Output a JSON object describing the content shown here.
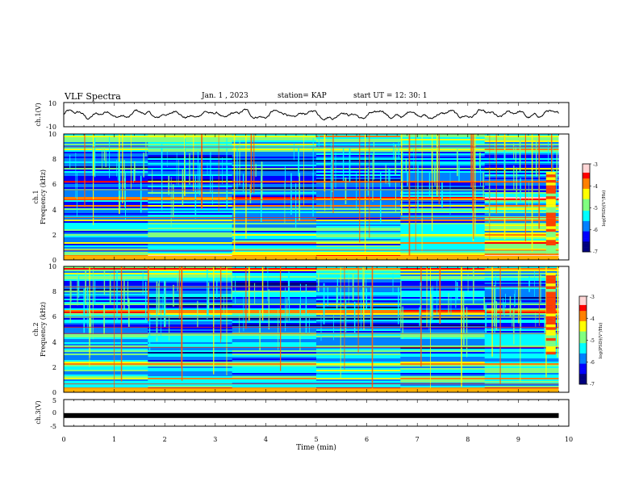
{
  "header": {
    "title": "VLF Spectra",
    "date": "Jan. 1 , 2023",
    "station": "station= KAP",
    "start": "start UT = 12: 30: 1"
  },
  "colors": {
    "colormap": [
      "#00007f",
      "#0000ff",
      "#0080ff",
      "#00ffff",
      "#80ff80",
      "#ffff00",
      "#ff8000",
      "#ff0000",
      "#ffc8c8",
      "#ffffff"
    ],
    "trace": "#000000"
  },
  "chart_data": [
    {
      "type": "line",
      "panel": "ch1-waveform",
      "ylabel": "ch.1(V)",
      "ylim": [
        -10,
        10
      ],
      "yticks": [
        "10",
        "-10"
      ],
      "xlim": [
        0,
        10
      ],
      "note_series": "waveform oscillating roughly between -4 and 4 V"
    },
    {
      "type": "heatmap",
      "panel": "ch1-spectrogram",
      "ylabel": "ch.1",
      "ylabel2": "Frequency (kHz)",
      "ylim": [
        0,
        10
      ],
      "yticks": [
        "0",
        "2",
        "4",
        "6",
        "8",
        "10"
      ],
      "xlim": [
        0,
        10
      ],
      "colorbar": {
        "label": "log(PSD)(V²/Hz)",
        "range": [
          -7,
          -3
        ],
        "ticks": [
          "-3",
          "-4",
          "-5",
          "-6",
          "-7"
        ]
      }
    },
    {
      "type": "heatmap",
      "panel": "ch2-spectrogram",
      "ylabel": "ch.2",
      "ylabel2": "Frequency (kHz)",
      "ylim": [
        0,
        10
      ],
      "yticks": [
        "0",
        "2",
        "4",
        "6",
        "8",
        "10"
      ],
      "xlim": [
        0,
        10
      ],
      "colorbar": {
        "label": "log(PSD)(V²/Hz)",
        "range": [
          -7,
          -3
        ],
        "ticks": [
          "-3",
          "-4",
          "-5",
          "-6",
          "-7"
        ]
      }
    },
    {
      "type": "line",
      "panel": "ch3-waveform",
      "ylabel": "ch.3(V)",
      "ylim": [
        -5,
        5
      ],
      "yticks": [
        "5",
        "0",
        "-5"
      ],
      "xlim": [
        0,
        10
      ],
      "xticks": [
        "0",
        "1",
        "2",
        "3",
        "4",
        "5",
        "6",
        "7",
        "8",
        "9",
        "10"
      ],
      "xlabel": "Time (min)",
      "constant_value": -1
    }
  ]
}
